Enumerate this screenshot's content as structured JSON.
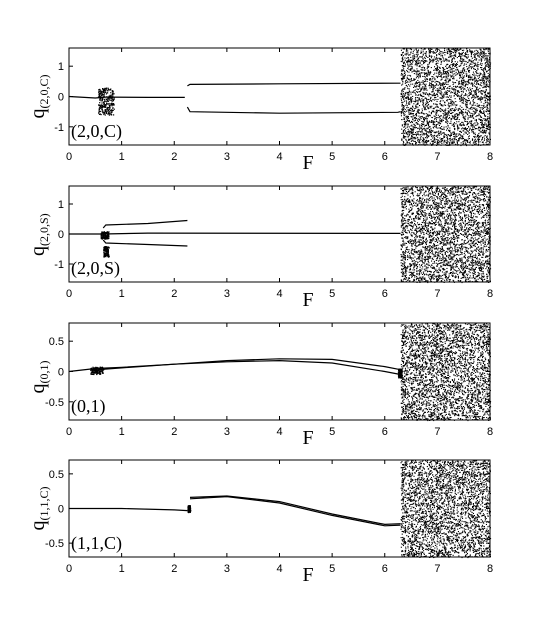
{
  "chart_data": [
    {
      "type": "scatter",
      "panel_label": "(2,0,C)",
      "ylabel_main": "q",
      "ylabel_sub": "(2,0,C)",
      "xlabel": "F",
      "xlim": [
        0,
        8
      ],
      "ylim": [
        -1.6,
        1.6
      ],
      "xticks": [
        "0",
        "1",
        "2",
        "3",
        "4",
        "5",
        "6",
        "7",
        "8"
      ],
      "yticks": [
        {
          "v": 1,
          "label": "1"
        },
        {
          "v": 0,
          "label": "0"
        },
        {
          "v": -1,
          "label": "-1"
        }
      ],
      "chaos_start": 6.3,
      "branches": [
        {
          "x": [
            0,
            0.5,
            0.7,
            0.75,
            1.5,
            2.2
          ],
          "y": [
            0,
            -0.05,
            -0.02,
            -0.02,
            -0.03,
            -0.03
          ]
        },
        {
          "x": [
            2.25,
            2.3,
            4,
            6.25,
            6.3
          ],
          "y": [
            0.35,
            0.4,
            0.42,
            0.44,
            0.44
          ]
        },
        {
          "x": [
            2.25,
            2.3,
            4,
            6.25,
            6.3
          ],
          "y": [
            -0.35,
            -0.5,
            -0.55,
            -0.52,
            -0.5
          ]
        }
      ],
      "blobs": [
        {
          "x": 0.55,
          "y": 0.3,
          "w": 0.3,
          "h": 0.5
        },
        {
          "x": 0.55,
          "y": -0.2,
          "w": 0.3,
          "h": 0.4
        }
      ]
    },
    {
      "type": "scatter",
      "panel_label": "(2,0,S)",
      "ylabel_main": "q",
      "ylabel_sub": "(2,0,S)",
      "xlabel": "F",
      "xlim": [
        0,
        8
      ],
      "ylim": [
        -1.6,
        1.6
      ],
      "xticks": [
        "0",
        "1",
        "2",
        "3",
        "4",
        "5",
        "6",
        "7",
        "8"
      ],
      "yticks": [
        {
          "v": 1,
          "label": "1"
        },
        {
          "v": 0,
          "label": "0"
        },
        {
          "v": -1,
          "label": "-1"
        }
      ],
      "chaos_start": 6.3,
      "branches": [
        {
          "x": [
            0,
            0.5,
            0.65,
            1.5,
            6.3
          ],
          "y": [
            0,
            0,
            0,
            0.03,
            0.02
          ]
        },
        {
          "x": [
            0.65,
            0.7,
            1.5,
            2.25
          ],
          "y": [
            0.2,
            0.3,
            0.35,
            0.45
          ]
        },
        {
          "x": [
            0.65,
            0.7,
            1.5,
            2.25
          ],
          "y": [
            -0.2,
            -0.3,
            -0.35,
            -0.4
          ]
        }
      ],
      "blobs": [
        {
          "x": 0.6,
          "y": 0.1,
          "w": 0.15,
          "h": 0.25
        },
        {
          "x": 0.65,
          "y": -0.4,
          "w": 0.1,
          "h": 0.35
        }
      ]
    },
    {
      "type": "scatter",
      "panel_label": "(0,1)",
      "ylabel_main": "q",
      "ylabel_sub": "(0,1)",
      "xlabel": "F",
      "xlim": [
        0,
        8
      ],
      "ylim": [
        -0.8,
        0.8
      ],
      "xticks": [
        "0",
        "1",
        "2",
        "3",
        "4",
        "5",
        "6",
        "7",
        "8"
      ],
      "yticks": [
        {
          "v": 0.5,
          "label": "0.5"
        },
        {
          "v": 0,
          "label": "0"
        },
        {
          "v": -0.5,
          "label": "-0.5"
        }
      ],
      "chaos_start": 6.3,
      "branches": [
        {
          "x": [
            0,
            0.5,
            1,
            2,
            3,
            4,
            5,
            6,
            6.3
          ],
          "y": [
            0,
            0.05,
            0.07,
            0.12,
            0.18,
            0.21,
            0.2,
            0.08,
            0.03
          ]
        },
        {
          "x": [
            0.4,
            1,
            2,
            3,
            4,
            5,
            6,
            6.3
          ],
          "y": [
            0.02,
            0.06,
            0.12,
            0.16,
            0.18,
            0.14,
            0.0,
            -0.05
          ]
        }
      ],
      "blobs": [
        {
          "x": 0.4,
          "y": 0.08,
          "w": 0.25,
          "h": 0.12
        },
        {
          "x": 6.25,
          "y": 0.05,
          "w": 0.07,
          "h": 0.15
        }
      ]
    },
    {
      "type": "scatter",
      "panel_label": "(1,1,C)",
      "ylabel_main": "q",
      "ylabel_sub": "(1,1,C)",
      "xlabel": "F",
      "xlim": [
        0,
        8
      ],
      "ylim": [
        -0.7,
        0.7
      ],
      "xticks": [
        "0",
        "1",
        "2",
        "3",
        "4",
        "5",
        "6",
        "7",
        "8"
      ],
      "yticks": [
        {
          "v": 0.5,
          "label": "0.5"
        },
        {
          "v": 0,
          "label": "0"
        },
        {
          "v": -0.5,
          "label": "-0.5"
        }
      ],
      "chaos_start": 6.3,
      "branches": [
        {
          "x": [
            0,
            1,
            2,
            2.25
          ],
          "y": [
            0,
            0,
            -0.02,
            -0.03
          ]
        },
        {
          "x": [
            2.3,
            3,
            4,
            5,
            6,
            6.3
          ],
          "y": [
            0.16,
            0.18,
            0.1,
            -0.08,
            -0.23,
            -0.22
          ]
        },
        {
          "x": [
            2.3,
            3,
            4,
            5,
            6,
            6.3
          ],
          "y": [
            0.14,
            0.17,
            0.08,
            -0.1,
            -0.25,
            -0.24
          ]
        }
      ],
      "blobs": [
        {
          "x": 2.25,
          "y": 0.05,
          "w": 0.05,
          "h": 0.1
        }
      ]
    }
  ]
}
